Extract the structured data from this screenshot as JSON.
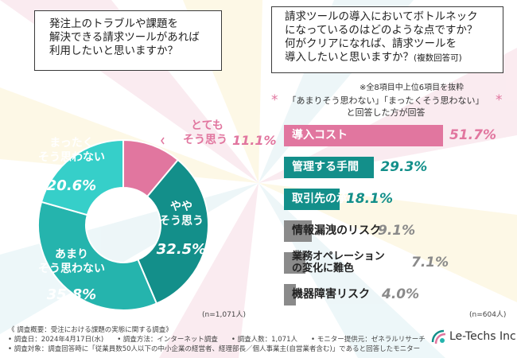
{
  "colors": {
    "pink": "#e1769f",
    "dark_teal": "#138f8a",
    "mid_teal": "#25b4ad",
    "light_teal": "#36cfc9",
    "gray": "#8a8a8a",
    "text_dark": "#333333"
  },
  "left": {
    "question_lines": [
      "発注上のトラブルや課題を",
      "解決できる請求ツールがあれば",
      "利用したいと思いますか？"
    ],
    "n_label": "(n=1,071人)"
  },
  "right": {
    "question_lines": [
      "請求ツールの導入においてボトルネック",
      "になっているのはどのような点ですか？",
      "何がクリアになれば、請求ツールを",
      "導入したいと思いますか？"
    ],
    "question_suffix": "(複数回答可)",
    "note": "※全8項目中上位6項目を抜粋",
    "subtitle_line1": "「あまりそう思わない」「まったくそう思わない」",
    "subtitle_line2": "と回答した方が回答",
    "n_label": "(n=604人)"
  },
  "footer": {
    "line1": "《 調査概要：受注における課題の実態に関する調査》",
    "line2": "• 調査日：2024年4月17日(水)　　• 調査方法：インターネット調査　　• 調査人数：1,071人　　• モニター提供元：ゼネラルリサーチ",
    "line3": "• 調査対象：調査回答時に「従業員数50人以下の中小企業の経営者、経理部長／個人事業主(自営業者含む)」であると回答したモニター"
  },
  "logo": {
    "text": "Le-Techs Inc."
  },
  "chart_data": [
    {
      "type": "pie",
      "variant": "donut",
      "start": "top",
      "direction": "clockwise",
      "unit": "%",
      "slices": [
        {
          "label": "とても\nそう思う",
          "value": 11.1,
          "color": "#e1769f"
        },
        {
          "label": "やや\nそう思う",
          "value": 32.5,
          "color": "#138f8a"
        },
        {
          "label": "あまり\nそう思わない",
          "value": 35.8,
          "color": "#25b4ad"
        },
        {
          "label": "まったく\nそう思わない",
          "value": 20.6,
          "color": "#36cfc9"
        }
      ]
    },
    {
      "type": "bar",
      "orientation": "horizontal",
      "unit": "%",
      "xlim": [
        0,
        51.7
      ],
      "categories": [
        "導入コスト",
        "管理する手間",
        "取引先の承認",
        "情報漏洩のリスク",
        "業務オペレーション\nの変化に難色",
        "機器障害リスク"
      ],
      "values": [
        51.7,
        29.3,
        18.1,
        9.1,
        7.1,
        4.0
      ],
      "value_labels": [
        "51.7%",
        "29.3%",
        "18.1%",
        "9.1%",
        "7.1%",
        "4.0%"
      ],
      "colors": [
        "#e1769f",
        "#138f8a",
        "#138f8a",
        "#8a8a8a",
        "#8a8a8a",
        "#8a8a8a"
      ]
    }
  ]
}
